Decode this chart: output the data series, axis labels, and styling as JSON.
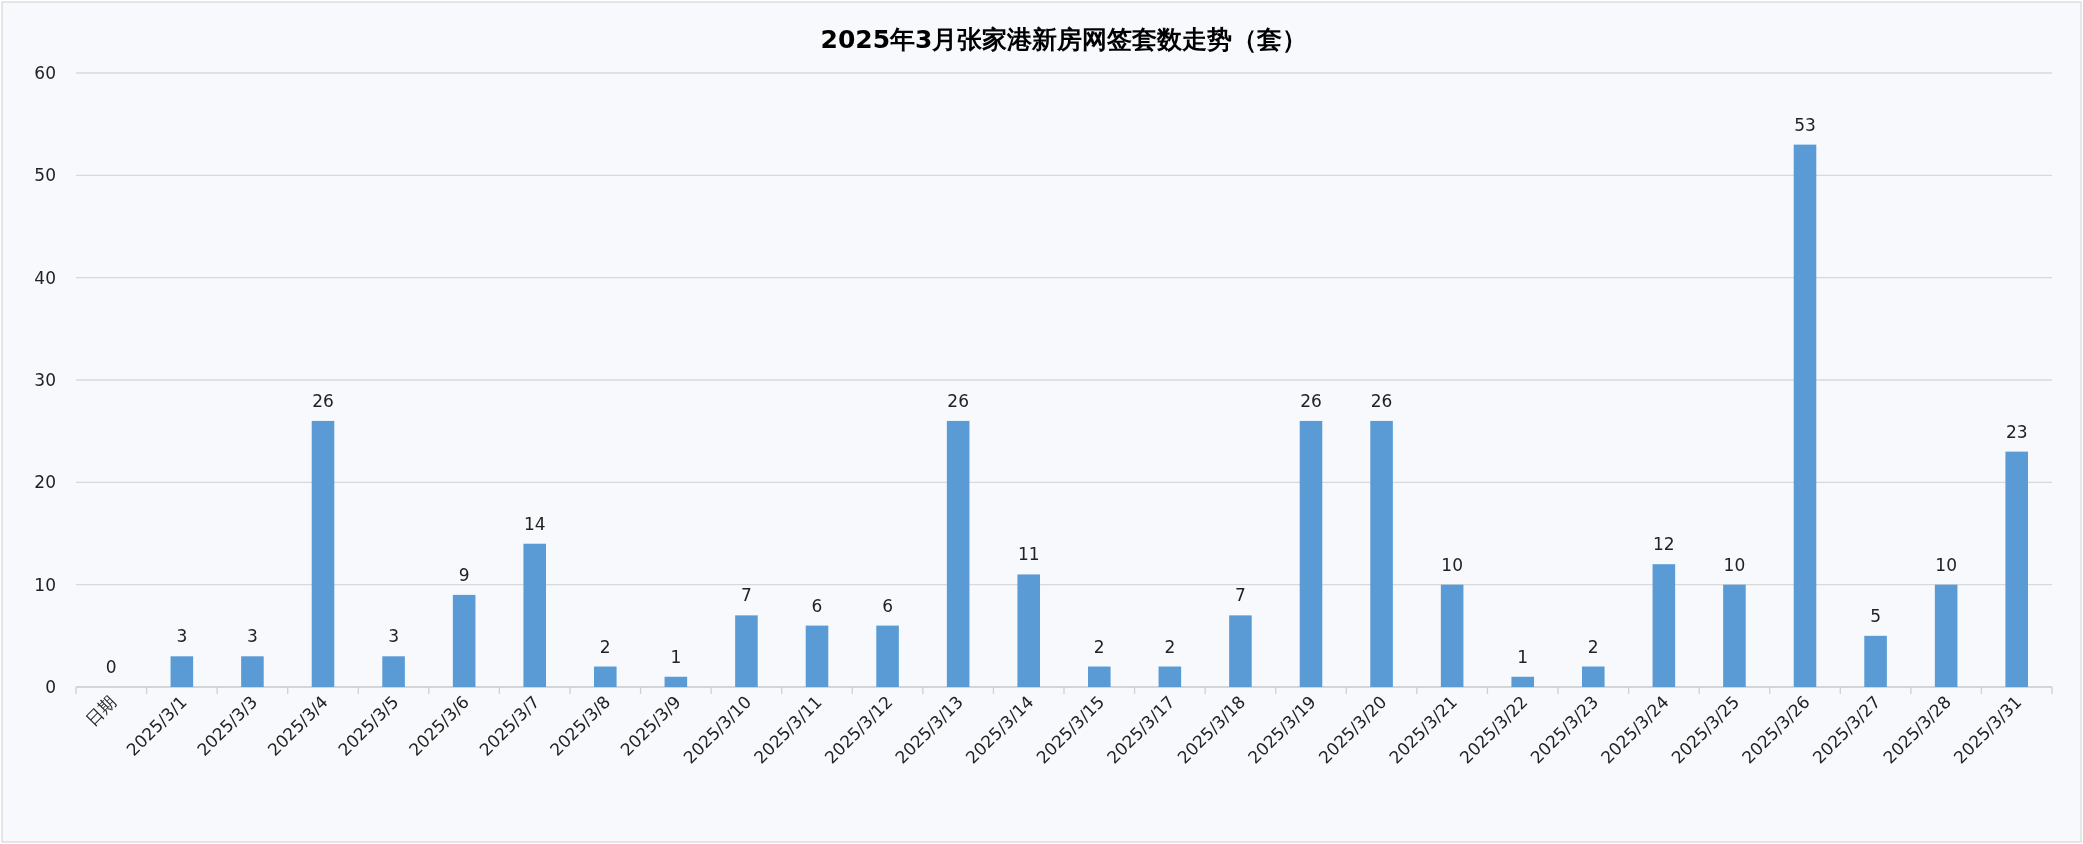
{
  "chart_data": {
    "type": "bar",
    "title": "2025年3月张家港新房网签套数走势（套）",
    "categories": [
      "日期",
      "2025/3/1",
      "2025/3/3",
      "2025/3/4",
      "2025/3/5",
      "2025/3/6",
      "2025/3/7",
      "2025/3/8",
      "2025/3/9",
      "2025/3/10",
      "2025/3/11",
      "2025/3/12",
      "2025/3/13",
      "2025/3/14",
      "2025/3/15",
      "2025/3/17",
      "2025/3/18",
      "2025/3/19",
      "2025/3/20",
      "2025/3/21",
      "2025/3/22",
      "2025/3/23",
      "2025/3/24",
      "2025/3/25",
      "2025/3/26",
      "2025/3/27",
      "2025/3/28",
      "2025/3/31"
    ],
    "values": [
      0,
      3,
      3,
      26,
      3,
      9,
      14,
      2,
      1,
      7,
      6,
      6,
      26,
      11,
      2,
      2,
      7,
      26,
      26,
      10,
      1,
      2,
      12,
      10,
      53,
      5,
      10,
      23
    ],
    "color": "#5b9bd5",
    "ylim": [
      0,
      60
    ],
    "yticks": [
      0,
      10,
      20,
      30,
      40,
      50,
      60
    ],
    "grid": "y",
    "data_labels": true
  }
}
